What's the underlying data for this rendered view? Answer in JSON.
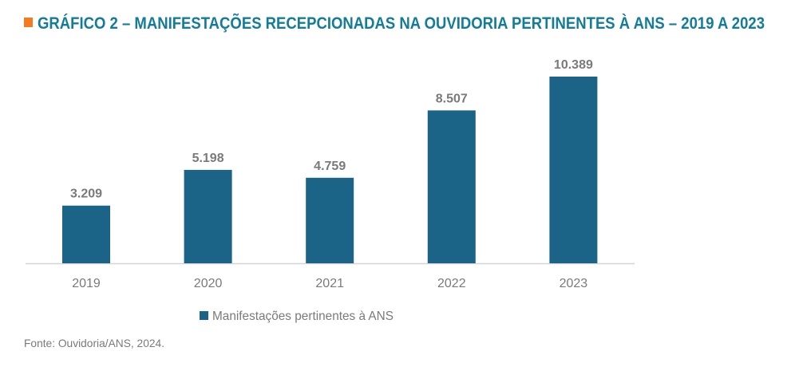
{
  "chart_data": {
    "type": "bar",
    "title": "GRÁFICO 2 – MANIFESTAÇÕES RECEPCIONADAS NA OUVIDORIA PERTINENTES À ANS – 2019 A 2023",
    "categories": [
      "2019",
      "2020",
      "2021",
      "2022",
      "2023"
    ],
    "series": [
      {
        "name": "Manifestações pertinentes à ANS",
        "values": [
          3209,
          5198,
          4759,
          8507,
          10389
        ]
      }
    ],
    "data_labels": [
      "3.209",
      "5.198",
      "4.759",
      "8.507",
      "10.389"
    ],
    "xlabel": "",
    "ylabel": "",
    "ylim": [
      0,
      10389
    ],
    "grid": false,
    "legend": "bottom",
    "source": "Fonte: Ouvidoria/ANS, 2024.",
    "colors": {
      "bar": "#1b6488",
      "title": "#137c99",
      "title_marker": "#f47b20",
      "label": "#7a7a7a"
    }
  }
}
